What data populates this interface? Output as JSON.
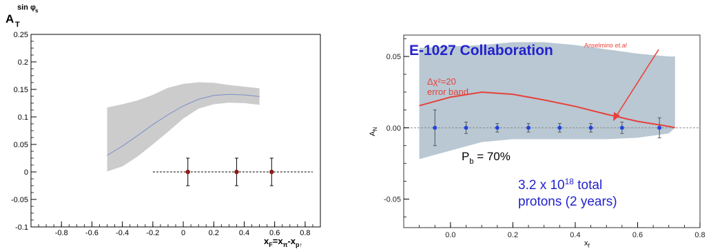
{
  "chart_data": [
    {
      "type": "scatter",
      "title": "",
      "ylabel": "A_T^{sin φ_s}",
      "ylabel_parts": {
        "base": "A",
        "sub": "T",
        "sup": "sin φ",
        "supsub": "s"
      },
      "xlabel": "x_F=x_π-x_p↑",
      "xlabel_parts": [
        "x",
        "F",
        "=x",
        "π",
        "-x",
        "p↑"
      ],
      "xlim": [
        -1.0,
        0.9
      ],
      "ylim": [
        -0.1,
        0.25
      ],
      "xticks": [
        -0.8,
        -0.6,
        -0.4,
        -0.2,
        0,
        0.2,
        0.4,
        0.6,
        0.8
      ],
      "xtick_labels": [
        "-0.8",
        "-0.6",
        "-0.4",
        "-0.2",
        "0",
        "0.2",
        "0.4",
        "0.6",
        "0.8"
      ],
      "yticks": [
        -0.1,
        -0.05,
        0,
        0.05,
        0.1,
        0.15,
        0.2,
        0.25
      ],
      "ytick_labels": [
        "-0.1",
        "-0.05",
        "0",
        "0.05",
        "0.1",
        "0.15",
        "0.2",
        "0.25"
      ],
      "band": {
        "x": [
          -0.5,
          -0.4,
          -0.3,
          -0.2,
          -0.1,
          0.0,
          0.1,
          0.2,
          0.3,
          0.4,
          0.5
        ],
        "upper": [
          0.117,
          0.123,
          0.13,
          0.14,
          0.153,
          0.16,
          0.163,
          0.162,
          0.158,
          0.155,
          0.152
        ],
        "lower": [
          0.001,
          0.01,
          0.028,
          0.05,
          0.073,
          0.097,
          0.115,
          0.123,
          0.126,
          0.125,
          0.122
        ],
        "color": "#cccccc"
      },
      "curve": {
        "x": [
          -0.5,
          -0.4,
          -0.3,
          -0.2,
          -0.1,
          0.0,
          0.1,
          0.2,
          0.3,
          0.4,
          0.5
        ],
        "y": [
          0.03,
          0.047,
          0.066,
          0.086,
          0.104,
          0.12,
          0.132,
          0.139,
          0.141,
          0.14,
          0.137
        ],
        "color": "#7a8fc8"
      },
      "points": {
        "x": [
          0.03,
          0.35,
          0.58
        ],
        "y": [
          0,
          0,
          0
        ],
        "yerr": [
          0.025,
          0.025,
          0.025
        ],
        "color": "#8b1a1a"
      },
      "reference_line": {
        "y": 0,
        "x_range": [
          -0.2,
          0.85
        ],
        "style": "dashed"
      }
    },
    {
      "type": "scatter",
      "title": "E-1027 Collaboration",
      "xlabel": "x_f",
      "xlabel_parts": [
        "x",
        "f"
      ],
      "ylabel": "A_N",
      "ylabel_parts": [
        "A",
        "N"
      ],
      "xlim": [
        -0.15,
        0.8
      ],
      "ylim": [
        -0.07,
        0.065
      ],
      "xticks": [
        0.0,
        0.2,
        0.4,
        0.6,
        0.8
      ],
      "xtick_labels": [
        "0.0",
        "0.2",
        "0.4",
        "0.6",
        "0.8"
      ],
      "yticks": [
        -0.05,
        0.0,
        0.05
      ],
      "ytick_labels": [
        "-0.05",
        "0.00",
        "0.05"
      ],
      "band": {
        "x": [
          -0.1,
          0.0,
          0.1,
          0.2,
          0.3,
          0.4,
          0.5,
          0.6,
          0.7,
          0.72
        ],
        "upper": [
          0.056,
          0.057,
          0.058,
          0.06,
          0.06,
          0.058,
          0.055,
          0.052,
          0.05,
          0.05
        ],
        "lower": [
          -0.022,
          -0.016,
          -0.01,
          -0.008,
          -0.008,
          -0.008,
          -0.008,
          -0.007,
          -0.004,
          0.0
        ],
        "color": "#b9c8d3"
      },
      "curve": {
        "x": [
          -0.1,
          0.0,
          0.1,
          0.2,
          0.3,
          0.4,
          0.5,
          0.6,
          0.7,
          0.72
        ],
        "y": [
          0.0155,
          0.0215,
          0.025,
          0.0235,
          0.0195,
          0.015,
          0.0095,
          0.0045,
          0.001,
          0.0
        ],
        "color": "#e8403a"
      },
      "points": {
        "x": [
          -0.05,
          0.05,
          0.15,
          0.25,
          0.35,
          0.45,
          0.55,
          0.67
        ],
        "y": [
          0,
          0,
          0,
          0,
          0,
          0,
          0,
          0
        ],
        "yerr": [
          0.0125,
          0.004,
          0.003,
          0.003,
          0.003,
          0.003,
          0.004,
          0.007
        ],
        "color": "#2244dd"
      },
      "reference_line": {
        "y": 0,
        "style": "dashed"
      },
      "annotations": {
        "chi2_line1": "Δχ²=20",
        "chi2_line2": "error band",
        "anselmino": "Anselmino",
        "anselmino_italic": "et.al",
        "polarization": "P",
        "polarization_sub": "b",
        "polarization_rest": " = 70%",
        "protons_pre": "3.2 x 10",
        "protons_sup": "18",
        "protons_post": " total",
        "protons_line2": "protons (2 years)"
      },
      "colors": {
        "title": "#2222cc",
        "annotation_red": "#e8403a",
        "protons": "#2222cc"
      }
    }
  ]
}
